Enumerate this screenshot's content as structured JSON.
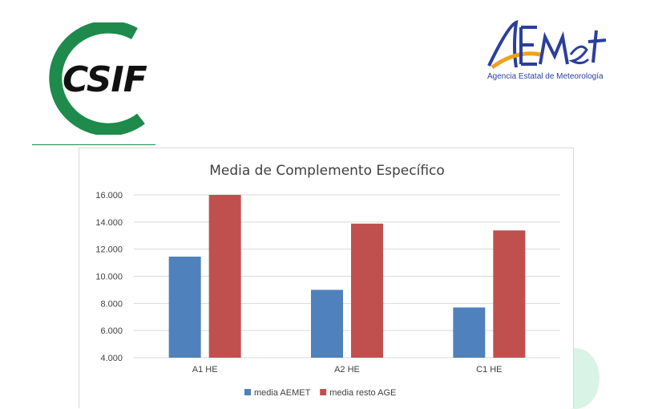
{
  "logos": {
    "csif": {
      "text": "CSIF",
      "color": "#1e8a4c",
      "text_color": "#111111"
    },
    "aemet": {
      "wordmark": "AEMet",
      "subtitle": "Agencia Estatal de Meteorología",
      "color_blue": "#2b3f9a",
      "color_orange": "#f0a020"
    }
  },
  "chart_data": {
    "type": "bar",
    "title": "Media de Complemento Específico",
    "categories": [
      "A1 HE",
      "A2 HE",
      "C1 HE"
    ],
    "series": [
      {
        "name": "media AEMET",
        "values": [
          11450,
          9000,
          7700
        ],
        "color": "#4f81bd"
      },
      {
        "name": "media resto AGE",
        "values": [
          16000,
          13880,
          13380
        ],
        "color": "#c0504d"
      }
    ],
    "ylim": [
      4000,
      16000
    ],
    "yticks": [
      "4.000",
      "6.000",
      "8.000",
      "10.000",
      "12.000",
      "14.000",
      "16.000"
    ],
    "ytick_values": [
      4000,
      6000,
      8000,
      10000,
      12000,
      14000,
      16000
    ],
    "grid": true,
    "legend_position": "bottom",
    "xlabel": "",
    "ylabel": ""
  }
}
